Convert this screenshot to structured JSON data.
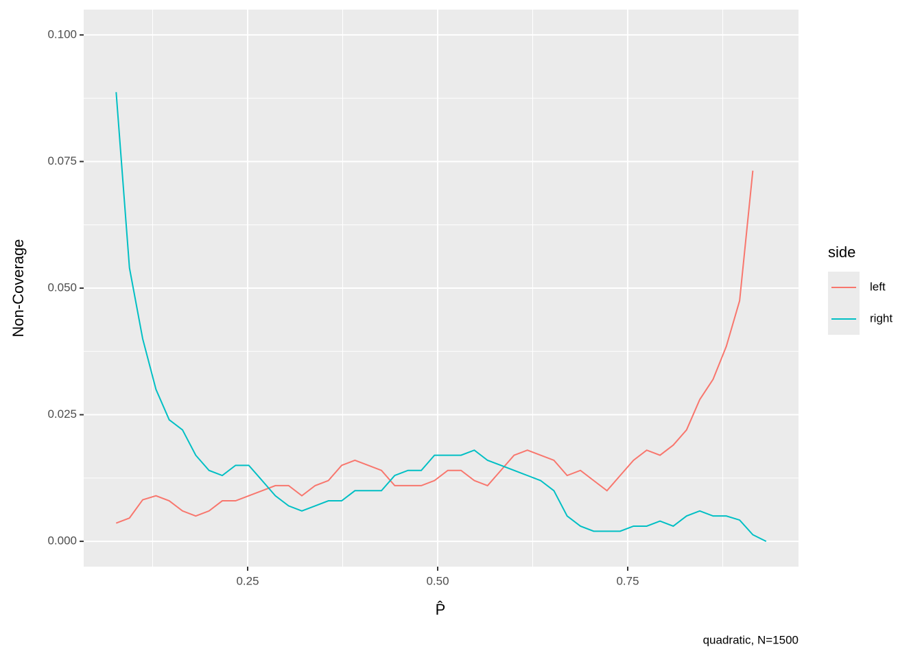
{
  "chart_data": {
    "type": "line",
    "x_label": "P̂",
    "y_label": "Non-Coverage",
    "caption": "quadratic, N=1500",
    "legend_title": "side",
    "x": [
      0.077,
      0.0945,
      0.1119,
      0.1294,
      0.1468,
      0.1643,
      0.1817,
      0.1992,
      0.2166,
      0.2341,
      0.2515,
      0.269,
      0.2864,
      0.3039,
      0.3213,
      0.3388,
      0.3562,
      0.3737,
      0.3911,
      0.4086,
      0.426,
      0.4435,
      0.4609,
      0.4784,
      0.4958,
      0.5133,
      0.5307,
      0.5482,
      0.5656,
      0.5831,
      0.6005,
      0.618,
      0.6354,
      0.6529,
      0.6703,
      0.6878,
      0.7052,
      0.7227,
      0.7401,
      0.7576,
      0.775,
      0.7925,
      0.8099,
      0.8274,
      0.8448,
      0.8623,
      0.8797,
      0.8972,
      0.9146,
      0.9321
    ],
    "series": [
      {
        "name": "left",
        "color": "#F8766D",
        "values": [
          0.0036,
          0.0046,
          0.0082,
          0.009,
          0.008,
          0.006,
          0.005,
          0.006,
          0.008,
          0.008,
          0.009,
          0.01,
          0.011,
          0.011,
          0.009,
          0.011,
          0.012,
          0.015,
          0.016,
          0.015,
          0.014,
          0.011,
          0.011,
          0.011,
          0.012,
          0.014,
          0.014,
          0.012,
          0.011,
          0.014,
          0.017,
          0.018,
          0.017,
          0.016,
          0.013,
          0.014,
          0.012,
          0.01,
          0.013,
          0.016,
          0.018,
          0.017,
          0.019,
          0.022,
          0.028,
          0.032,
          0.0385,
          0.0475,
          0.0732,
          null
        ]
      },
      {
        "name": "right",
        "color": "#00BFC4",
        "values": [
          0.0887,
          0.054,
          0.04,
          0.03,
          0.024,
          0.022,
          0.017,
          0.014,
          0.013,
          0.015,
          0.015,
          0.012,
          0.009,
          0.007,
          0.006,
          0.007,
          0.008,
          0.008,
          0.01,
          0.01,
          0.01,
          0.013,
          0.014,
          0.014,
          0.017,
          0.017,
          0.017,
          0.018,
          0.016,
          0.015,
          0.014,
          0.013,
          0.012,
          0.01,
          0.005,
          0.003,
          0.002,
          0.002,
          0.002,
          0.003,
          0.003,
          0.004,
          0.003,
          0.005,
          0.006,
          0.005,
          0.005,
          0.0042,
          0.0013,
          0
        ]
      }
    ],
    "xlim": [
      0.0343,
      0.9747
    ],
    "ylim": [
      -0.005,
      0.105
    ],
    "xticks": [
      {
        "value": 0.25,
        "label": "0.25"
      },
      {
        "value": 0.5,
        "label": "0.50"
      },
      {
        "value": 0.75,
        "label": "0.75"
      }
    ],
    "yticks": [
      {
        "value": 0,
        "label": "0.000"
      },
      {
        "value": 0.025,
        "label": "0.025"
      },
      {
        "value": 0.05,
        "label": "0.050"
      },
      {
        "value": 0.075,
        "label": "0.075"
      },
      {
        "value": 0.1,
        "label": "0.100"
      }
    ],
    "grid": true,
    "minor_grid": true,
    "legend": "right"
  }
}
